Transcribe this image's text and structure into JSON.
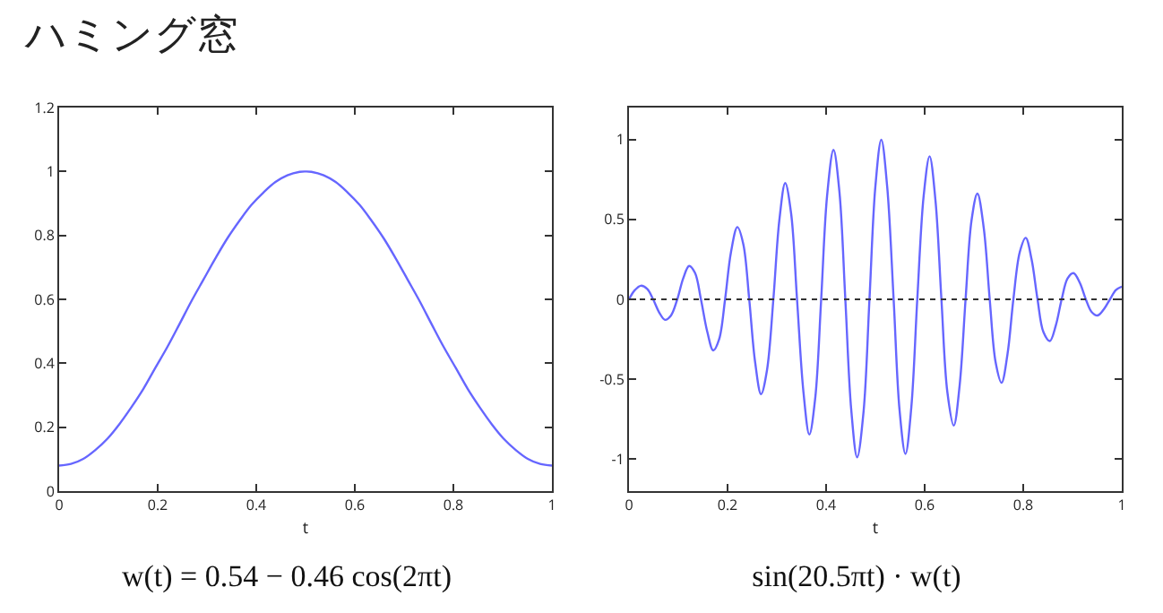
{
  "chart_data": [
    {
      "type": "line",
      "title": "ハミング窓",
      "xlabel": "t",
      "color": "#6666ff",
      "xlim": [
        0,
        1
      ],
      "xticks": [
        0,
        0.2,
        0.4,
        0.6,
        0.8,
        1
      ],
      "ylim": [
        0,
        1.2
      ],
      "yticks": [
        0,
        0.2,
        0.4,
        0.6,
        0.8,
        1,
        1.2
      ],
      "annotations": [
        "w(t) = 0.54 − 0.46 cos(2πt)"
      ],
      "x": [
        0,
        0.024,
        0.049,
        0.073,
        0.098,
        0.122,
        0.146,
        0.171,
        0.195,
        0.22,
        0.244,
        0.268,
        0.293,
        0.317,
        0.341,
        0.366,
        0.39,
        0.415,
        0.439,
        0.463,
        0.488,
        0.5,
        0.512,
        0.537,
        0.561,
        0.585,
        0.61,
        0.634,
        0.659,
        0.683,
        0.707,
        0.732,
        0.756,
        0.78,
        0.805,
        0.829,
        0.854,
        0.878,
        0.902,
        0.927,
        0.951,
        0.976,
        1
      ],
      "values": [
        0.08,
        0.085,
        0.101,
        0.128,
        0.164,
        0.209,
        0.261,
        0.32,
        0.385,
        0.452,
        0.522,
        0.593,
        0.662,
        0.728,
        0.79,
        0.846,
        0.895,
        0.935,
        0.967,
        0.988,
        0.999,
        1,
        0.999,
        0.988,
        0.967,
        0.935,
        0.895,
        0.846,
        0.79,
        0.728,
        0.662,
        0.593,
        0.522,
        0.452,
        0.385,
        0.32,
        0.261,
        0.209,
        0.164,
        0.128,
        0.101,
        0.085,
        0.08
      ]
    },
    {
      "type": "line",
      "xlabel": "t",
      "color": "#6666ff",
      "xlim": [
        0,
        1
      ],
      "xticks": [
        0,
        0.2,
        0.4,
        0.6,
        0.8,
        1
      ],
      "ylim": [
        -1.2,
        1.2
      ],
      "yticks": [
        -1,
        -0.5,
        0,
        0.5,
        1
      ],
      "annotations": [
        "sin(20.5πt) · w(t)"
      ],
      "ref_lines": [
        {
          "axis": "y",
          "value": 0,
          "color": "#333333",
          "line_style": "dotted"
        }
      ],
      "x": [
        0,
        0.012,
        0.024,
        0.037,
        0.049,
        0.061,
        0.073,
        0.085,
        0.098,
        0.11,
        0.122,
        0.134,
        0.146,
        0.159,
        0.171,
        0.183,
        0.195,
        0.207,
        0.22,
        0.232,
        0.244,
        0.256,
        0.268,
        0.28,
        0.293,
        0.305,
        0.317,
        0.329,
        0.341,
        0.354,
        0.366,
        0.378,
        0.39,
        0.402,
        0.415,
        0.427,
        0.439,
        0.451,
        0.463,
        0.476,
        0.488,
        0.5,
        0.512,
        0.524,
        0.537,
        0.549,
        0.561,
        0.573,
        0.585,
        0.598,
        0.61,
        0.622,
        0.634,
        0.646,
        0.659,
        0.671,
        0.683,
        0.695,
        0.707,
        0.72,
        0.732,
        0.744,
        0.756,
        0.768,
        0.78,
        0.793,
        0.805,
        0.817,
        0.829,
        0.841,
        0.854,
        0.866,
        0.878,
        0.89,
        0.902,
        0.915,
        0.927,
        0.939,
        0.951,
        0.963,
        0.976,
        0.988,
        1
      ],
      "values": [
        0,
        0.058,
        0.085,
        0.065,
        0,
        -0.08,
        -0.128,
        -0.102,
        0,
        0.131,
        0.209,
        0.165,
        0,
        -0.205,
        -0.32,
        -0.249,
        0,
        0.296,
        0.452,
        0.345,
        0,
        -0.394,
        -0.593,
        -0.444,
        0,
        0.492,
        0.728,
        0.537,
        0,
        -0.579,
        -0.846,
        -0.616,
        0,
        0.648,
        0.935,
        0.673,
        0,
        -0.692,
        -0.988,
        -0.703,
        0,
        0.707,
        0.999,
        0.703,
        0,
        -0.692,
        -0.967,
        -0.673,
        0,
        0.648,
        0.895,
        0.616,
        0,
        -0.579,
        -0.79,
        -0.537,
        0,
        0.492,
        0.662,
        0.444,
        0,
        -0.394,
        -0.522,
        -0.345,
        0,
        0.296,
        0.385,
        0.249,
        0,
        -0.205,
        -0.261,
        -0.165,
        0,
        0.131,
        0.164,
        0.102,
        0,
        -0.08,
        -0.101,
        -0.065,
        0,
        0.058,
        0.08
      ]
    }
  ]
}
